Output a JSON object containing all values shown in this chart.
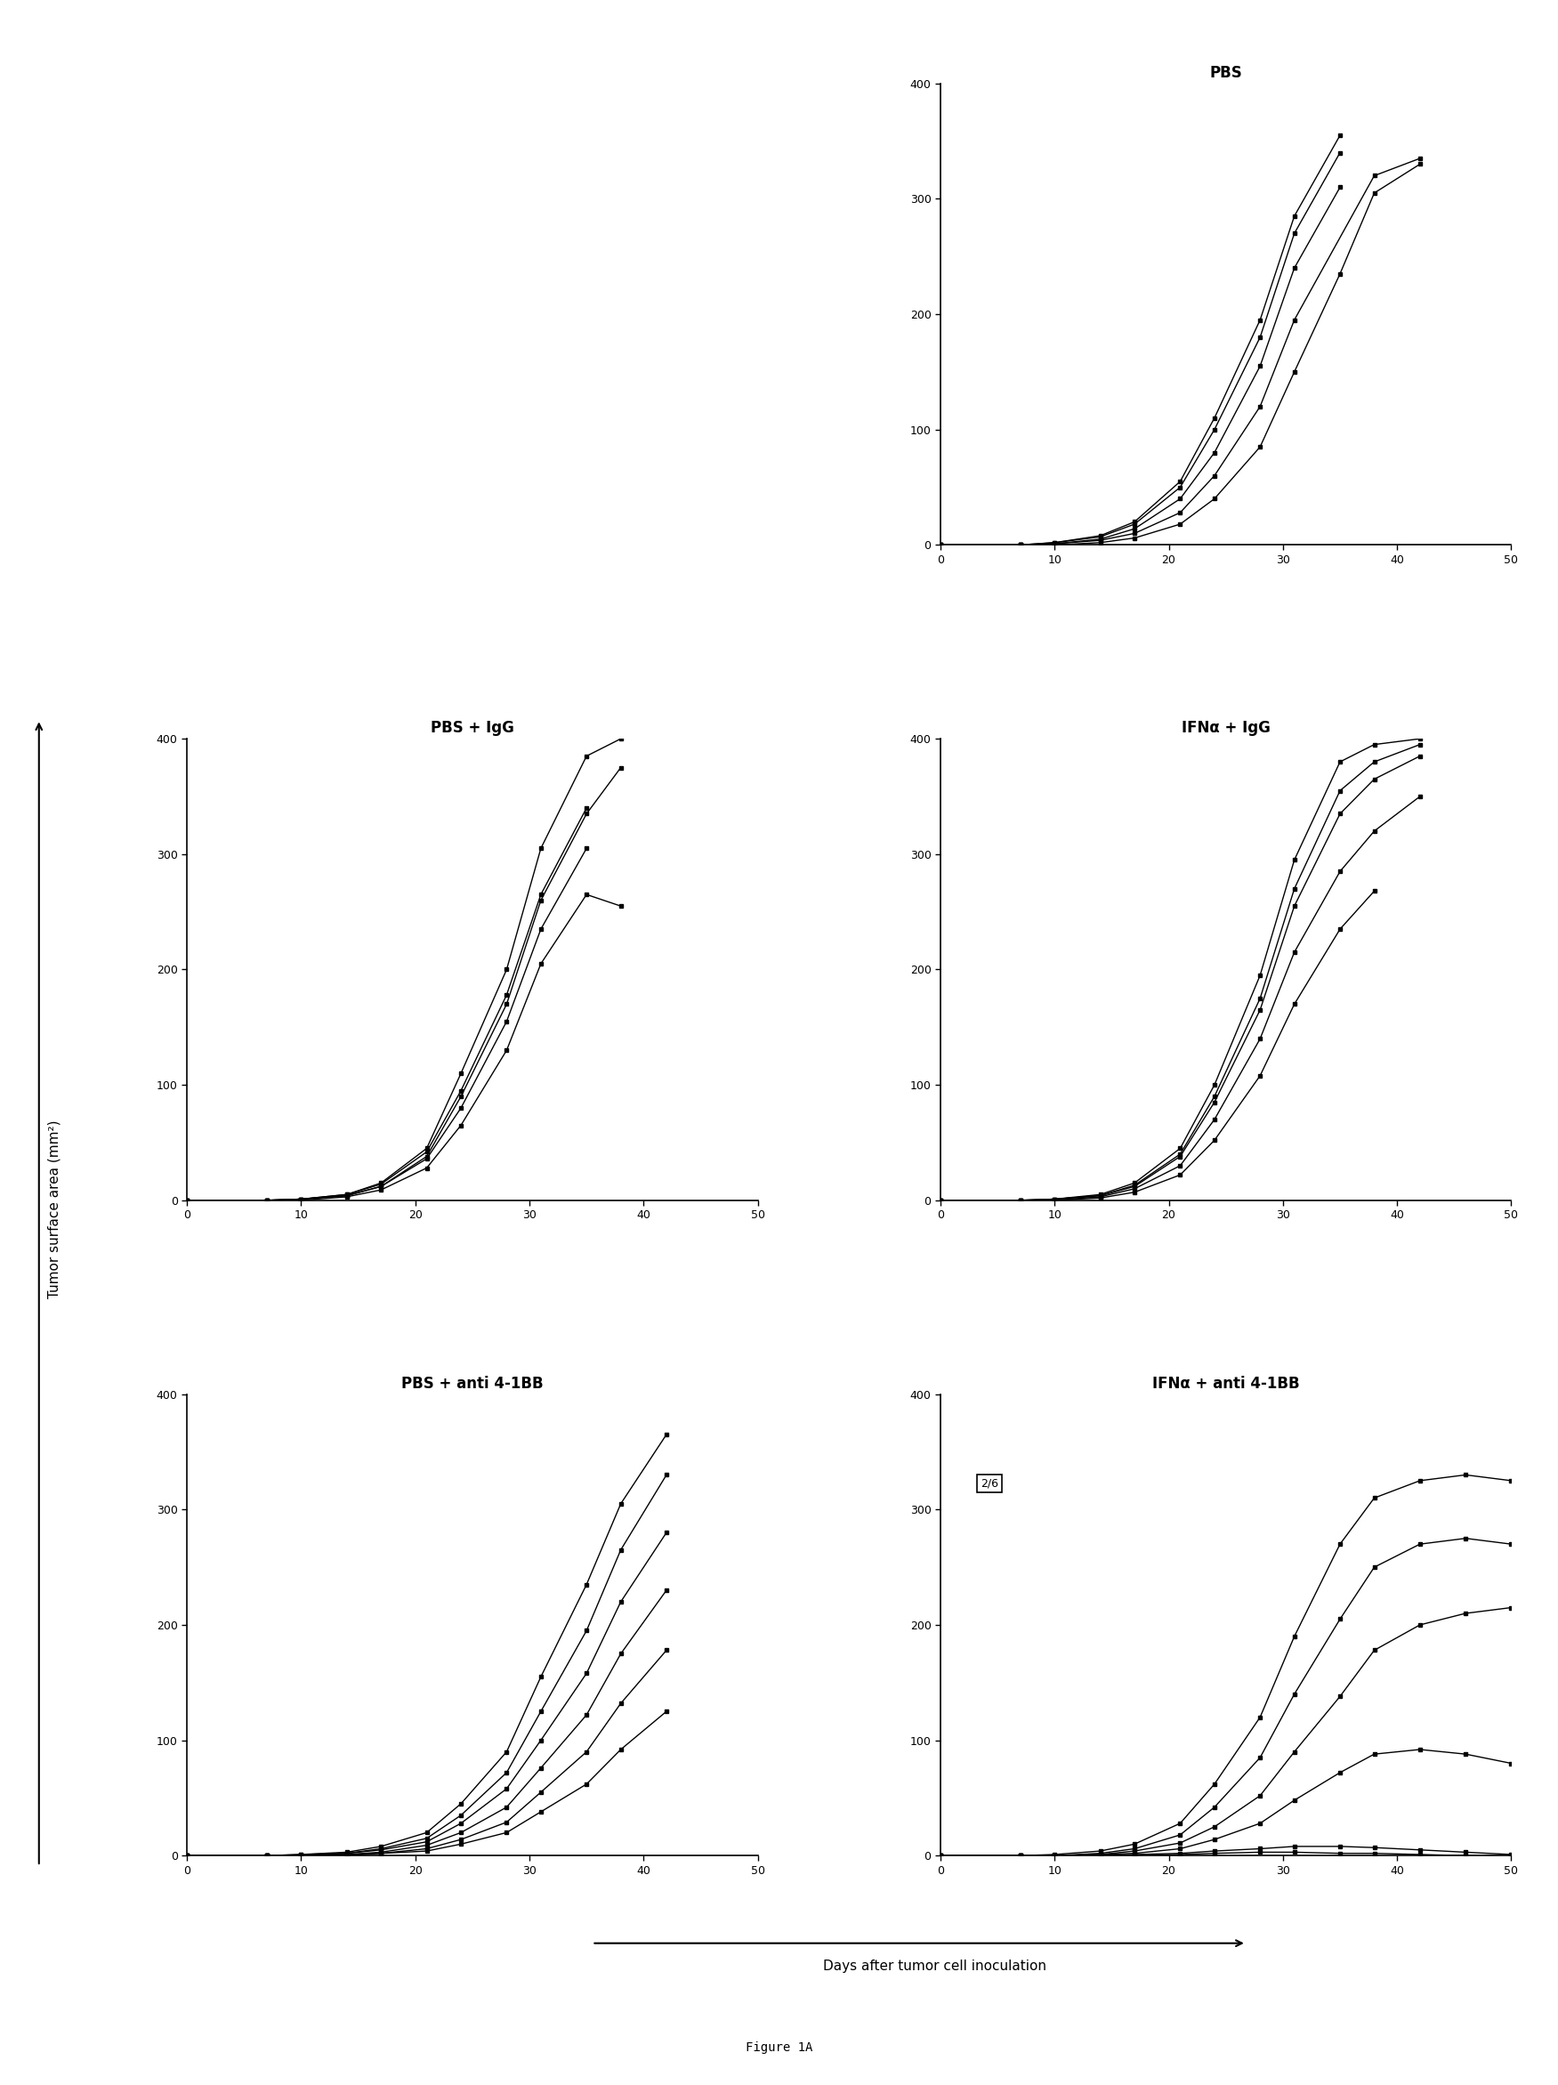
{
  "figure_title": "Figure 1A",
  "ylabel": "Tumor surface area (mm²)",
  "xlabel": "Days after tumor cell inoculation",
  "panels": [
    {
      "title": "PBS",
      "position": "top_right",
      "xlim": [
        0,
        50
      ],
      "ylim": [
        0,
        400
      ],
      "xticks": [
        0,
        10,
        20,
        30,
        40,
        50
      ],
      "yticks": [
        0,
        100,
        200,
        300,
        400
      ],
      "series": [
        {
          "x": [
            0,
            7,
            10,
            14,
            17,
            21,
            24,
            28,
            31,
            35
          ],
          "y": [
            0,
            0,
            2,
            8,
            20,
            55,
            110,
            195,
            285,
            355
          ]
        },
        {
          "x": [
            0,
            7,
            10,
            14,
            17,
            21,
            24,
            28,
            31,
            35
          ],
          "y": [
            0,
            0,
            2,
            7,
            18,
            50,
            100,
            180,
            270,
            340
          ]
        },
        {
          "x": [
            0,
            7,
            10,
            14,
            17,
            21,
            24,
            28,
            31,
            35
          ],
          "y": [
            0,
            0,
            1,
            5,
            14,
            40,
            80,
            155,
            240,
            310
          ]
        },
        {
          "x": [
            0,
            7,
            10,
            14,
            17,
            21,
            24,
            28,
            31,
            38,
            42
          ],
          "y": [
            0,
            0,
            1,
            4,
            10,
            28,
            60,
            120,
            195,
            320,
            335
          ]
        },
        {
          "x": [
            0,
            7,
            10,
            14,
            17,
            21,
            24,
            28,
            31,
            35,
            38,
            42
          ],
          "y": [
            0,
            0,
            0,
            2,
            6,
            18,
            40,
            85,
            150,
            235,
            305,
            330
          ]
        }
      ]
    },
    {
      "title": "PBS + IgG",
      "position": "mid_left",
      "xlim": [
        0,
        50
      ],
      "ylim": [
        0,
        400
      ],
      "xticks": [
        0,
        10,
        20,
        30,
        40,
        50
      ],
      "yticks": [
        0,
        100,
        200,
        300,
        400
      ],
      "series": [
        {
          "x": [
            0,
            7,
            10,
            14,
            17,
            21,
            24,
            28,
            31,
            35,
            38
          ],
          "y": [
            0,
            0,
            1,
            5,
            15,
            45,
            110,
            200,
            305,
            385,
            400
          ]
        },
        {
          "x": [
            0,
            7,
            10,
            14,
            17,
            21,
            24,
            28,
            31,
            35,
            38
          ],
          "y": [
            0,
            0,
            1,
            4,
            12,
            38,
            90,
            170,
            260,
            335,
            375
          ]
        },
        {
          "x": [
            0,
            7,
            10,
            14,
            17,
            21,
            24,
            28,
            31,
            35
          ],
          "y": [
            0,
            0,
            1,
            5,
            14,
            42,
            95,
            178,
            265,
            340
          ]
        },
        {
          "x": [
            0,
            7,
            10,
            14,
            17,
            21,
            24,
            28,
            31,
            35
          ],
          "y": [
            0,
            0,
            1,
            4,
            12,
            36,
            80,
            155,
            235,
            305
          ]
        },
        {
          "x": [
            0,
            7,
            10,
            14,
            17,
            21,
            24,
            28,
            31,
            35,
            38
          ],
          "y": [
            0,
            0,
            0,
            3,
            9,
            28,
            65,
            130,
            205,
            265,
            255
          ]
        }
      ]
    },
    {
      "title": "IFNα + IgG",
      "position": "mid_right",
      "xlim": [
        0,
        50
      ],
      "ylim": [
        0,
        400
      ],
      "xticks": [
        0,
        10,
        20,
        30,
        40,
        50
      ],
      "yticks": [
        0,
        100,
        200,
        300,
        400
      ],
      "series": [
        {
          "x": [
            0,
            7,
            10,
            14,
            17,
            21,
            24,
            28,
            31,
            35,
            38,
            42
          ],
          "y": [
            0,
            0,
            1,
            5,
            15,
            45,
            100,
            195,
            295,
            380,
            395,
            400
          ]
        },
        {
          "x": [
            0,
            7,
            10,
            14,
            17,
            21,
            24,
            28,
            31,
            35,
            38,
            42
          ],
          "y": [
            0,
            0,
            1,
            4,
            13,
            40,
            90,
            175,
            270,
            355,
            380,
            395
          ]
        },
        {
          "x": [
            0,
            7,
            10,
            14,
            17,
            21,
            24,
            28,
            31,
            35,
            38,
            42
          ],
          "y": [
            0,
            0,
            1,
            4,
            12,
            38,
            85,
            165,
            255,
            335,
            365,
            385
          ]
        },
        {
          "x": [
            0,
            7,
            10,
            14,
            17,
            21,
            24,
            28,
            31,
            35,
            38,
            42
          ],
          "y": [
            0,
            0,
            0,
            3,
            10,
            30,
            70,
            140,
            215,
            285,
            320,
            350
          ]
        },
        {
          "x": [
            0,
            7,
            10,
            14,
            17,
            21,
            24,
            28,
            31,
            35,
            38
          ],
          "y": [
            0,
            0,
            0,
            2,
            7,
            22,
            52,
            108,
            170,
            235,
            268
          ]
        }
      ]
    },
    {
      "title": "PBS + anti 4-1BB",
      "position": "bot_left",
      "xlim": [
        0,
        50
      ],
      "ylim": [
        0,
        400
      ],
      "xticks": [
        0,
        10,
        20,
        30,
        40,
        50
      ],
      "yticks": [
        0,
        100,
        200,
        300,
        400
      ],
      "series": [
        {
          "x": [
            0,
            7,
            10,
            14,
            17,
            21,
            24,
            28,
            31,
            35,
            38,
            42
          ],
          "y": [
            0,
            0,
            1,
            3,
            8,
            20,
            45,
            90,
            155,
            235,
            305,
            365
          ]
        },
        {
          "x": [
            0,
            7,
            10,
            14,
            17,
            21,
            24,
            28,
            31,
            35,
            38,
            42
          ],
          "y": [
            0,
            0,
            1,
            2,
            6,
            15,
            35,
            72,
            125,
            195,
            265,
            330
          ]
        },
        {
          "x": [
            0,
            7,
            10,
            14,
            17,
            21,
            24,
            28,
            31,
            35,
            38,
            42
          ],
          "y": [
            0,
            0,
            0,
            2,
            5,
            12,
            28,
            58,
            100,
            158,
            220,
            280
          ]
        },
        {
          "x": [
            0,
            7,
            10,
            14,
            17,
            21,
            24,
            28,
            31,
            35,
            38,
            42
          ],
          "y": [
            0,
            0,
            0,
            1,
            3,
            9,
            20,
            42,
            76,
            122,
            175,
            230
          ]
        },
        {
          "x": [
            0,
            7,
            10,
            14,
            17,
            21,
            24,
            28,
            31,
            35,
            38,
            42
          ],
          "y": [
            0,
            0,
            0,
            1,
            2,
            6,
            14,
            29,
            55,
            90,
            132,
            178
          ]
        },
        {
          "x": [
            0,
            7,
            10,
            14,
            17,
            21,
            24,
            28,
            31,
            35,
            38,
            42
          ],
          "y": [
            0,
            0,
            0,
            0,
            2,
            4,
            10,
            20,
            38,
            62,
            92,
            125
          ]
        }
      ]
    },
    {
      "title": "IFNα + anti 4-1BB",
      "position": "bot_right",
      "xlim": [
        0,
        50
      ],
      "ylim": [
        0,
        400
      ],
      "xticks": [
        0,
        10,
        20,
        30,
        40,
        50
      ],
      "yticks": [
        0,
        100,
        200,
        300,
        400
      ],
      "annotation": "2/6",
      "series": [
        {
          "x": [
            0,
            7,
            10,
            14,
            17,
            21,
            24,
            28,
            31,
            35,
            38,
            42,
            46,
            50
          ],
          "y": [
            0,
            0,
            1,
            4,
            10,
            28,
            62,
            120,
            190,
            270,
            310,
            325,
            330,
            325
          ]
        },
        {
          "x": [
            0,
            7,
            10,
            14,
            17,
            21,
            24,
            28,
            31,
            35,
            38,
            42,
            46,
            50
          ],
          "y": [
            0,
            0,
            0,
            2,
            6,
            18,
            42,
            85,
            140,
            205,
            250,
            270,
            275,
            270
          ]
        },
        {
          "x": [
            0,
            7,
            10,
            14,
            17,
            21,
            24,
            28,
            31,
            35,
            38,
            42,
            46,
            50
          ],
          "y": [
            0,
            0,
            0,
            1,
            4,
            11,
            25,
            52,
            90,
            138,
            178,
            200,
            210,
            215
          ]
        },
        {
          "x": [
            0,
            7,
            10,
            14,
            17,
            21,
            24,
            28,
            31,
            35,
            38,
            42,
            46,
            50
          ],
          "y": [
            0,
            0,
            0,
            1,
            2,
            6,
            14,
            28,
            48,
            72,
            88,
            92,
            88,
            80
          ]
        },
        {
          "x": [
            0,
            7,
            10,
            14,
            17,
            21,
            24,
            28,
            31,
            35,
            38,
            42,
            46,
            50
          ],
          "y": [
            0,
            0,
            0,
            0,
            1,
            2,
            4,
            6,
            8,
            8,
            7,
            5,
            3,
            1
          ]
        },
        {
          "x": [
            0,
            7,
            10,
            14,
            17,
            21,
            24,
            28,
            31,
            35,
            38,
            42,
            46,
            50
          ],
          "y": [
            0,
            0,
            0,
            0,
            0,
            1,
            2,
            3,
            3,
            2,
            2,
            1,
            0,
            0
          ]
        }
      ]
    }
  ]
}
